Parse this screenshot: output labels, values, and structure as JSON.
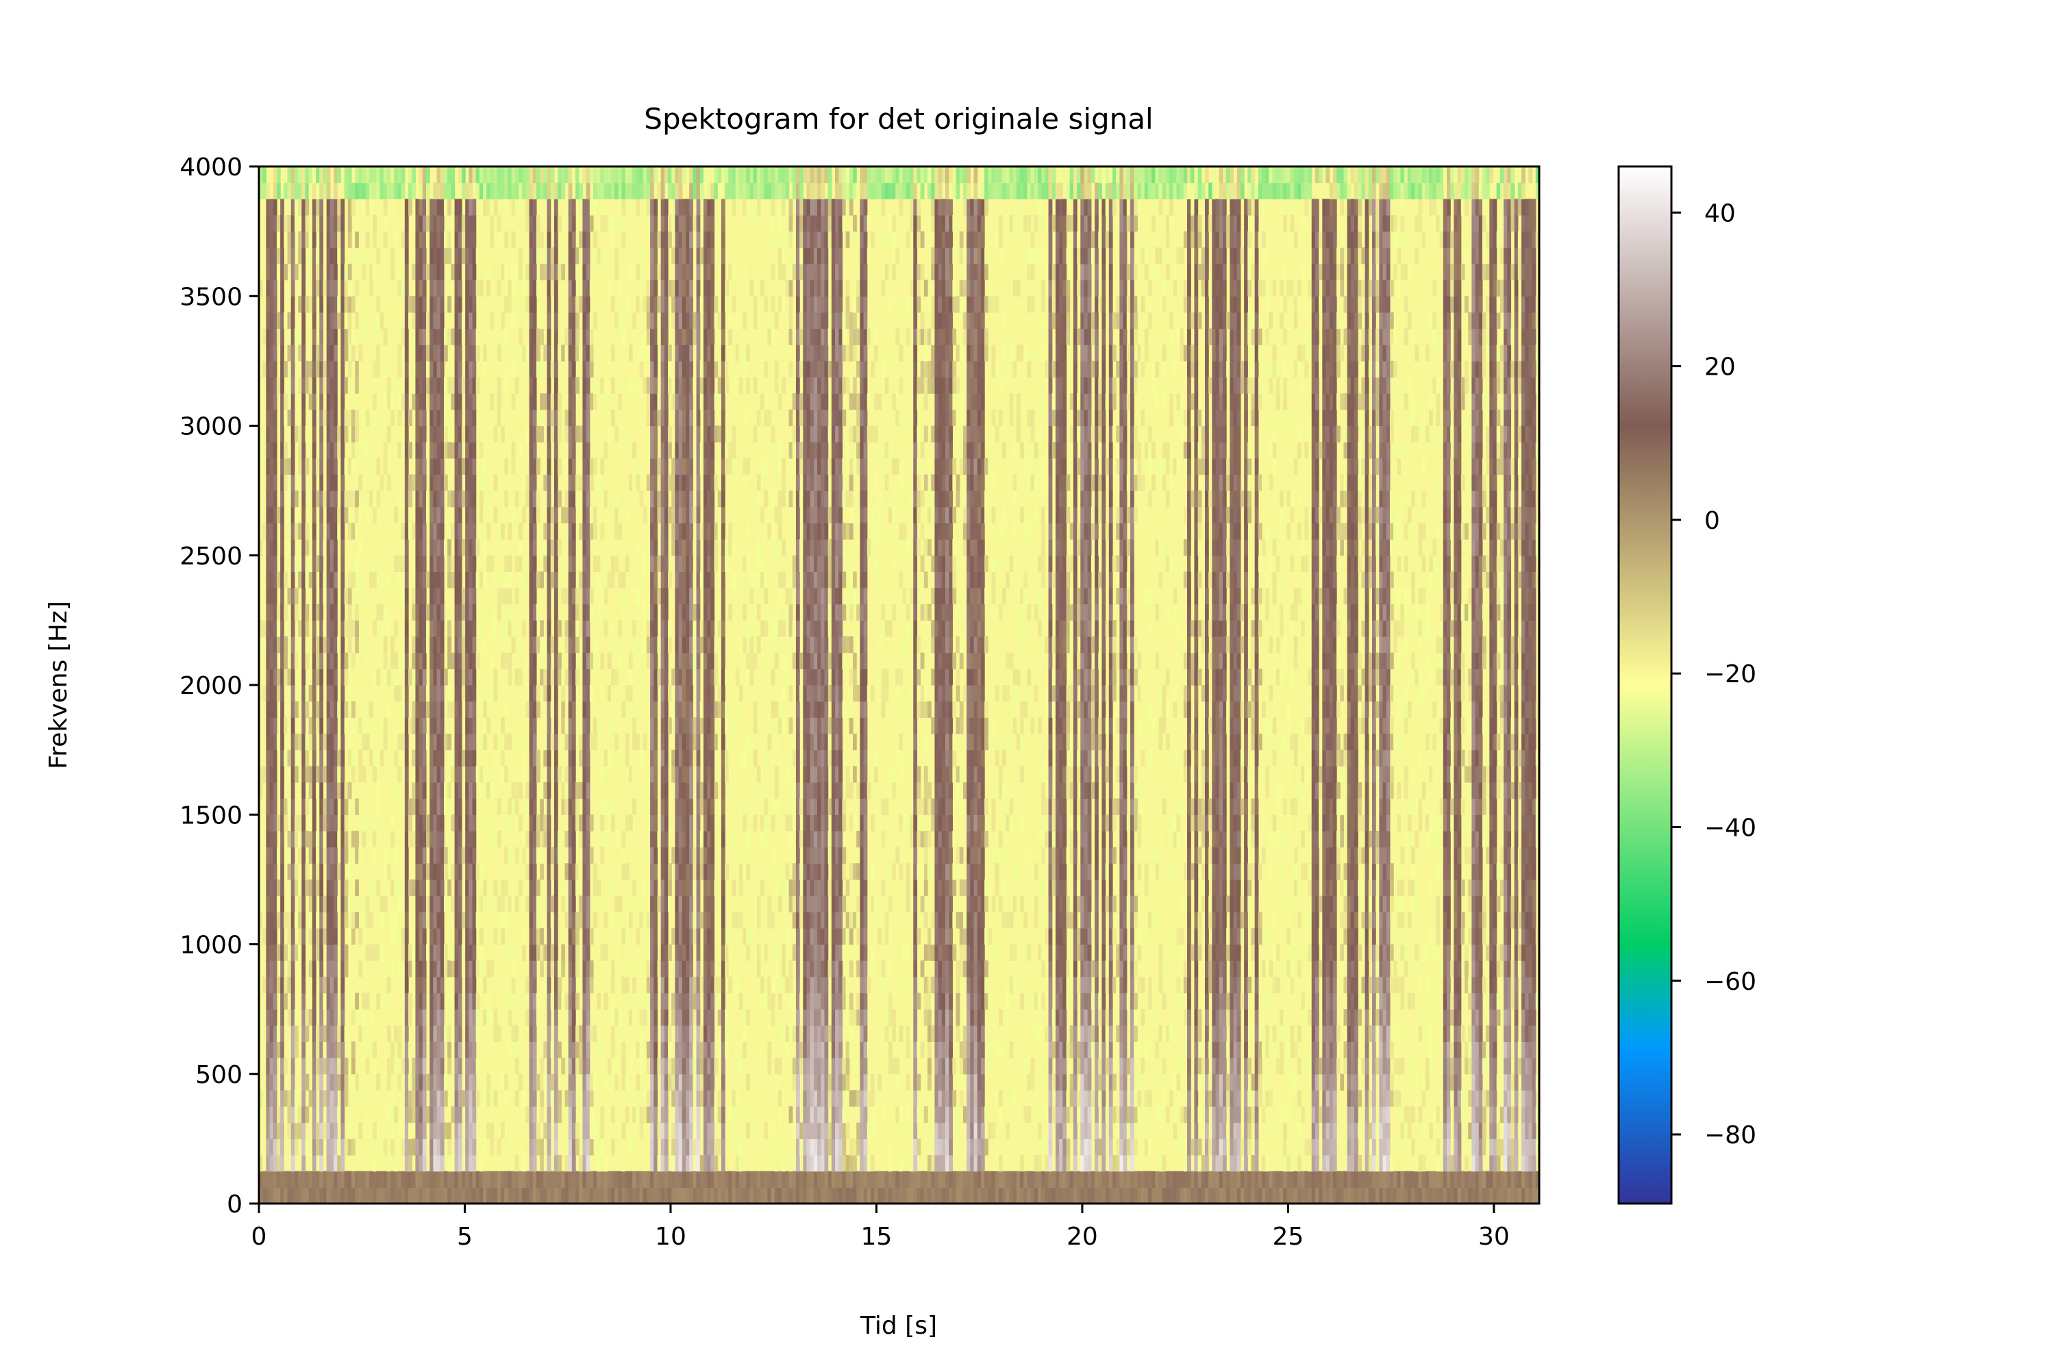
{
  "chart_data": {
    "type": "heatmap",
    "title": "Spektogram for det originale signal",
    "xlabel": "Tid [s]",
    "ylabel": "Frekvens [Hz]",
    "xlim": [
      0,
      31.1
    ],
    "ylim": [
      0,
      4000
    ],
    "x_ticks": [
      0,
      5,
      10,
      15,
      20,
      25,
      30
    ],
    "x_tick_labels": [
      "0",
      "5",
      "10",
      "15",
      "20",
      "25",
      "30"
    ],
    "y_ticks": [
      0,
      500,
      1000,
      1500,
      2000,
      2500,
      3000,
      3500,
      4000
    ],
    "y_tick_labels": [
      "0",
      "500",
      "1000",
      "1500",
      "2000",
      "2500",
      "3000",
      "3500",
      "4000"
    ],
    "colorbar": {
      "colormap": "terrain",
      "range": [
        -89,
        46
      ],
      "ticks": [
        -80,
        -60,
        -40,
        -20,
        0,
        20,
        40
      ],
      "tick_labels": [
        "−80",
        "−60",
        "−40",
        "−20",
        "0",
        "20",
        "40"
      ]
    },
    "grid": false,
    "background_level_db": -20,
    "high_energy_segments_s": [
      [
        0.2,
        2.4
      ],
      [
        3.5,
        5.3
      ],
      [
        6.6,
        8.1
      ],
      [
        9.4,
        11.3
      ],
      [
        12.9,
        14.8
      ],
      [
        15.9,
        17.7
      ],
      [
        19.2,
        21.3
      ],
      [
        22.5,
        24.4
      ],
      [
        25.6,
        27.6
      ],
      [
        28.8,
        31.0
      ]
    ],
    "peak_level_db": 46,
    "low_frequency_band_hz": [
      0,
      130
    ]
  }
}
